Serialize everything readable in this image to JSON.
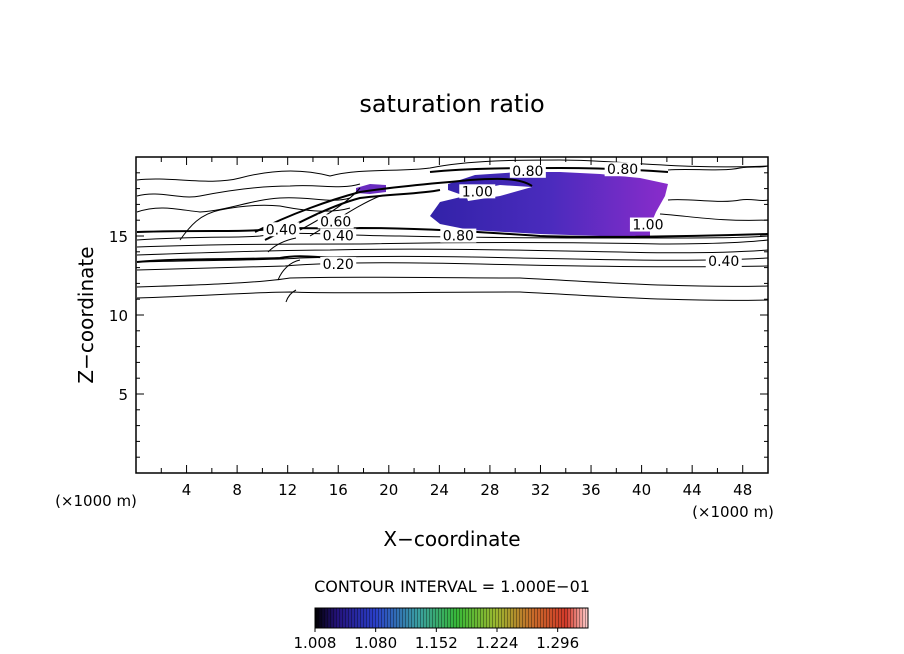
{
  "chart_data": {
    "type": "contour",
    "title": "saturation ratio",
    "xlabel": "X−coordinate",
    "ylabel": "Z−coordinate",
    "x_unit": "(×1000 m)",
    "z_unit": "(×1000 m)",
    "xlim": [
      0,
      50
    ],
    "ylim": [
      0,
      20
    ],
    "x_ticks": [
      4,
      8,
      12,
      16,
      20,
      24,
      28,
      32,
      36,
      40,
      44,
      48
    ],
    "y_ticks": [
      5,
      10,
      15
    ],
    "contour_interval_text": "CONTOUR INTERVAL = 1.000E−01",
    "contour_labels": [
      {
        "text": "0.80",
        "x": 31.0,
        "z": 19.0
      },
      {
        "text": "0.80",
        "x": 38.5,
        "z": 19.1
      },
      {
        "text": "1.00",
        "x": 27.0,
        "z": 17.7
      },
      {
        "text": "0.40",
        "x": 11.5,
        "z": 15.3
      },
      {
        "text": "0.60",
        "x": 15.8,
        "z": 15.8
      },
      {
        "text": "0.40",
        "x": 16.0,
        "z": 14.9
      },
      {
        "text": "0.80",
        "x": 25.5,
        "z": 14.9
      },
      {
        "text": "1.00",
        "x": 40.5,
        "z": 15.6
      },
      {
        "text": "0.20",
        "x": 16.0,
        "z": 13.1
      },
      {
        "text": "0.40",
        "x": 46.5,
        "z": 13.3
      }
    ],
    "colorbar": {
      "ticks": [
        "1.008",
        "1.080",
        "1.152",
        "1.224",
        "1.296"
      ],
      "min": 1.008,
      "max": 1.332
    },
    "fill_colors": {
      "low": "#2a1f9c",
      "mid": "#5a2fc8",
      "high": "#8a2cc9"
    }
  }
}
